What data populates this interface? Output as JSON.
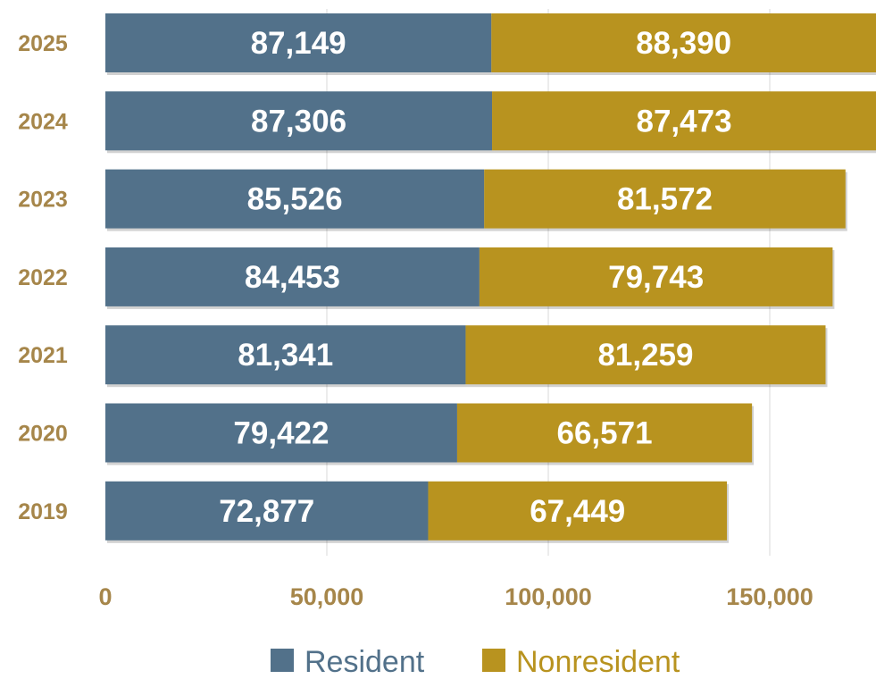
{
  "chart_data": {
    "type": "bar",
    "orientation": "horizontal",
    "stacked": true,
    "categories": [
      "2025",
      "2024",
      "2023",
      "2022",
      "2021",
      "2020",
      "2019"
    ],
    "series": [
      {
        "name": "Resident",
        "color": "#52718a",
        "values": [
          87149,
          87306,
          85526,
          84453,
          81341,
          79422,
          72877
        ],
        "labels": [
          "87,149",
          "87,306",
          "85,526",
          "84,453",
          "81,341",
          "79,422",
          "72,877"
        ]
      },
      {
        "name": "Nonresident",
        "color": "#b8931f",
        "values": [
          88390,
          87473,
          81572,
          79743,
          81259,
          66571,
          67449
        ],
        "labels": [
          "88,390",
          "87,473",
          "81,572",
          "79,743",
          "81,259",
          "66,571",
          "67,449"
        ]
      }
    ],
    "xticks": [
      {
        "value": 0,
        "label": "0"
      },
      {
        "value": 50000,
        "label": "50,000"
      },
      {
        "value": 100000,
        "label": "100,000"
      },
      {
        "value": 150000,
        "label": "150,000"
      }
    ],
    "xlim": [
      0,
      175000
    ],
    "grid": true,
    "legend": "bottom-center",
    "axis_label_color": "#a6864a",
    "gridline_color": "#e6e6e6"
  }
}
